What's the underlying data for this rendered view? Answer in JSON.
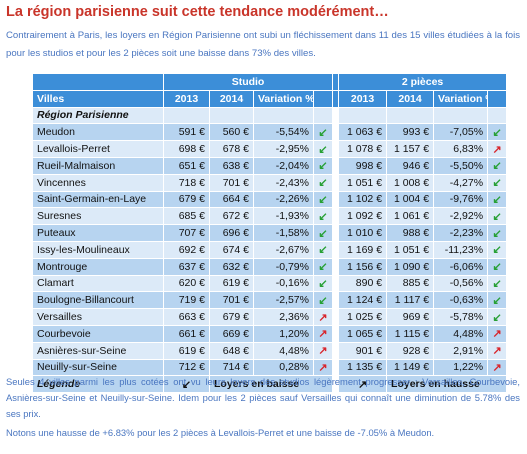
{
  "title": "La région parisienne suit cette tendance modérément…",
  "intro": "Contrairement à Paris, les loyers en Région Parisienne ont subi un fléchissement dans 11 des 15 villes étudiées à la fois pour les studios et pour les 2 pièces soit une baisse dans 73% des villes.",
  "table": {
    "groups": {
      "studio": "Studio",
      "deux_pieces": "2 pièces"
    },
    "headers": {
      "villes": "Villes",
      "y2013": "2013",
      "y2014": "2014",
      "variation": "Variation %",
      "y2013b": "2013",
      "y2014b": "2014",
      "variationb": "Variation %"
    },
    "section": "Région Parisienne",
    "arrow_colors": {
      "down": "#27a035",
      "up": "#d8262d"
    },
    "rows": [
      {
        "city": "Meudon",
        "s2013": "591 €",
        "s2014": "560 €",
        "svar": "-5,54%",
        "sdir": "down",
        "p2013": "1 063 €",
        "p2014": "993 €",
        "pvar": "-7,05%",
        "pdir": "down"
      },
      {
        "city": "Levallois-Perret",
        "s2013": "698 €",
        "s2014": "678 €",
        "svar": "-2,95%",
        "sdir": "down",
        "p2013": "1 078 €",
        "p2014": "1 157 €",
        "pvar": "6,83%",
        "pdir": "up"
      },
      {
        "city": "Rueil-Malmaison",
        "s2013": "651 €",
        "s2014": "638 €",
        "svar": "-2,04%",
        "sdir": "down",
        "p2013": "998 €",
        "p2014": "946 €",
        "pvar": "-5,50%",
        "pdir": "down"
      },
      {
        "city": "Vincennes",
        "s2013": "718 €",
        "s2014": "701 €",
        "svar": "-2,43%",
        "sdir": "down",
        "p2013": "1 051 €",
        "p2014": "1 008 €",
        "pvar": "-4,27%",
        "pdir": "down"
      },
      {
        "city": "Saint-Germain-en-Laye",
        "s2013": "679 €",
        "s2014": "664 €",
        "svar": "-2,26%",
        "sdir": "down",
        "p2013": "1 102 €",
        "p2014": "1 004 €",
        "pvar": "-9,76%",
        "pdir": "down"
      },
      {
        "city": "Suresnes",
        "s2013": "685 €",
        "s2014": "672 €",
        "svar": "-1,93%",
        "sdir": "down",
        "p2013": "1 092 €",
        "p2014": "1 061 €",
        "pvar": "-2,92%",
        "pdir": "down"
      },
      {
        "city": "Puteaux",
        "s2013": "707 €",
        "s2014": "696 €",
        "svar": "-1,58%",
        "sdir": "down",
        "p2013": "1 010 €",
        "p2014": "988 €",
        "pvar": "-2,23%",
        "pdir": "down"
      },
      {
        "city": "Issy-les-Moulineaux",
        "s2013": "692 €",
        "s2014": "674 €",
        "svar": "-2,67%",
        "sdir": "down",
        "p2013": "1 169 €",
        "p2014": "1 051 €",
        "pvar": "-11,23%",
        "pdir": "down"
      },
      {
        "city": "Montrouge",
        "s2013": "637 €",
        "s2014": "632 €",
        "svar": "-0,79%",
        "sdir": "down",
        "p2013": "1 156 €",
        "p2014": "1 090 €",
        "pvar": "-6,06%",
        "pdir": "down"
      },
      {
        "city": "Clamart",
        "s2013": "620 €",
        "s2014": "619 €",
        "svar": "-0,16%",
        "sdir": "down",
        "p2013": "890 €",
        "p2014": "885 €",
        "pvar": "-0,56%",
        "pdir": "down"
      },
      {
        "city": "Boulogne-Billancourt",
        "s2013": "719 €",
        "s2014": "701 €",
        "svar": "-2,57%",
        "sdir": "down",
        "p2013": "1 124 €",
        "p2014": "1 117 €",
        "pvar": "-0,63%",
        "pdir": "down"
      },
      {
        "city": "Versailles",
        "s2013": "663 €",
        "s2014": "679 €",
        "svar": "2,36%",
        "sdir": "up",
        "p2013": "1 025 €",
        "p2014": "969 €",
        "pvar": "-5,78%",
        "pdir": "down"
      },
      {
        "city": "Courbevoie",
        "s2013": "661 €",
        "s2014": "669 €",
        "svar": "1,20%",
        "sdir": "up",
        "p2013": "1 065 €",
        "p2014": "1 115 €",
        "pvar": "4,48%",
        "pdir": "up"
      },
      {
        "city": "Asnières-sur-Seine",
        "s2013": "619 €",
        "s2014": "648 €",
        "svar": "4,48%",
        "sdir": "up",
        "p2013": "901 €",
        "p2014": "928 €",
        "pvar": "2,91%",
        "pdir": "up"
      },
      {
        "city": "Neuilly-sur-Seine",
        "s2013": "712 €",
        "s2014": "714 €",
        "svar": "0,28%",
        "sdir": "up",
        "p2013": "1 135 €",
        "p2014": "1 149 €",
        "pvar": "1,22%",
        "pdir": "up"
      }
    ],
    "legend": {
      "label": "Légende",
      "down_text": "Loyers en baisse",
      "up_text": "Loyers en hausse"
    }
  },
  "para1": "Seules 4 villes parmi les plus cotées ont vu leurs loyers des studios légèrement progresser : Versailles, Courbevoie, Asnières-sur-Seine et Neuilly-sur-Seine. Idem pour les 2 pièces sauf Versailles qui connaît une diminution de 5.78% des ses prix.",
  "para2": "Notons une hausse de +6.83% pour les 2 pièces à Levallois-Perret et une baisse de -7.05% à Meudon."
}
